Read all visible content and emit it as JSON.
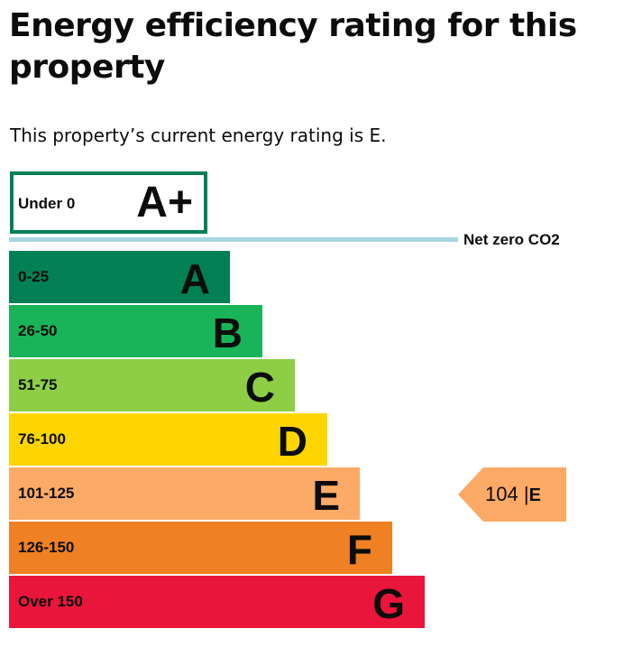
{
  "heading": "Energy efficiency rating for this property",
  "summary": "This property’s current energy rating is E.",
  "netzero_label": "Net zero CO2",
  "chart_data": {
    "type": "bar",
    "bands": [
      {
        "letter": "A+",
        "range": "Under 0",
        "color": "#ffffff",
        "border": "#008054"
      },
      {
        "letter": "A",
        "range": "0-25",
        "color": "#008054"
      },
      {
        "letter": "B",
        "range": "26-50",
        "color": "#19b459"
      },
      {
        "letter": "C",
        "range": "51-75",
        "color": "#8dce46"
      },
      {
        "letter": "D",
        "range": "76-100",
        "color": "#ffd500"
      },
      {
        "letter": "E",
        "range": "101-125",
        "color": "#fcaa65"
      },
      {
        "letter": "F",
        "range": "126-150",
        "color": "#ef8023"
      },
      {
        "letter": "G",
        "range": "Over 150",
        "color": "#e9153b"
      }
    ],
    "current": {
      "value": "104",
      "separator": "|",
      "letter": "E",
      "color": "#fcaa65"
    }
  }
}
